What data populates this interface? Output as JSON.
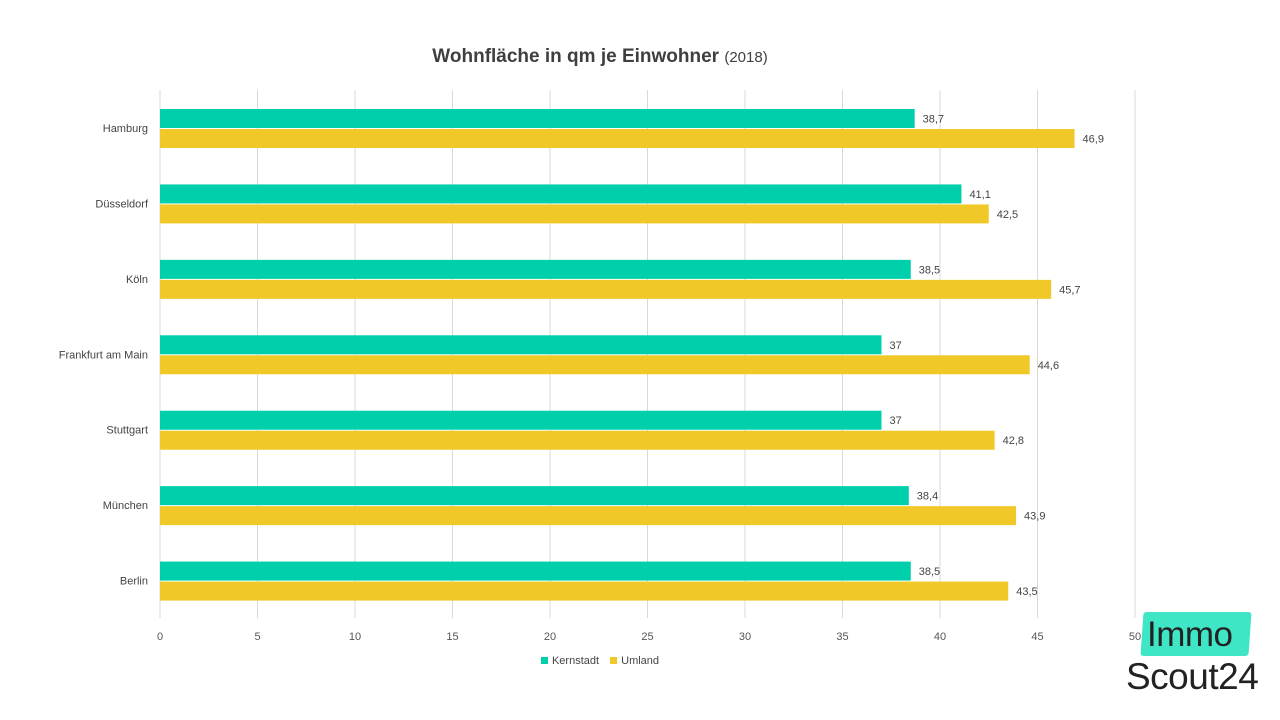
{
  "chart_data": {
    "type": "bar",
    "orientation": "horizontal",
    "title": "Wohnfläche in qm je Einwohner",
    "title_year": "(2018)",
    "categories": [
      "Hamburg",
      "Düsseldorf",
      "Köln",
      "Frankfurt am Main",
      "Stuttgart",
      "München",
      "Berlin"
    ],
    "series": [
      {
        "name": "Kernstadt",
        "color": "#00cfac",
        "values": [
          38.7,
          41.1,
          38.5,
          37,
          37,
          38.4,
          38.5
        ],
        "labels": [
          "38,7",
          "41,1",
          "38,5",
          "37",
          "37",
          "38,4",
          "38,5"
        ]
      },
      {
        "name": "Umland",
        "color": "#f0c929",
        "values": [
          46.9,
          42.5,
          45.7,
          44.6,
          42.8,
          43.9,
          43.5
        ],
        "labels": [
          "46,9",
          "42,5",
          "45,7",
          "44,6",
          "42,8",
          "43,9",
          "43,5"
        ]
      }
    ],
    "xlim": [
      0,
      50
    ],
    "xticks": [
      "0",
      "5",
      "10",
      "15",
      "20",
      "25",
      "30",
      "35",
      "40",
      "45",
      "50"
    ],
    "grid": true,
    "legend_position": "bottom"
  },
  "logo": {
    "line1": "Immo",
    "line2": "Scout24",
    "accent": "#3ee6c5"
  }
}
